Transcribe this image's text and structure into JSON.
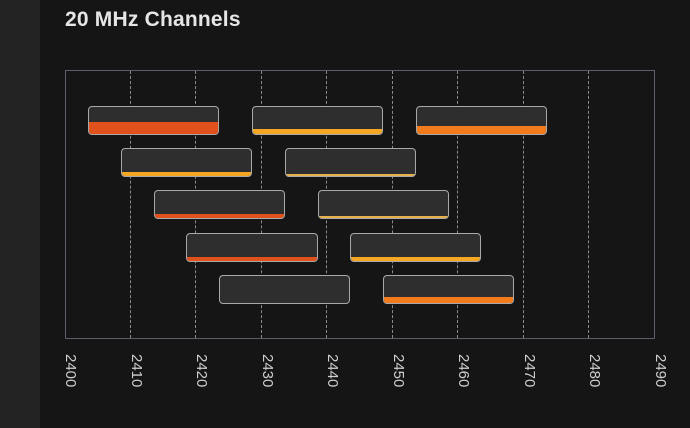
{
  "header": {
    "title": "20 MHz Channels"
  },
  "chart_data": {
    "type": "bar",
    "subtype": "frequency-channel-ranges",
    "x_ticks": [
      "2400",
      "2410",
      "2420",
      "2430",
      "2440",
      "2450",
      "2460",
      "2470",
      "2480",
      "2490"
    ],
    "xlim": [
      2400,
      2490
    ],
    "grid": true,
    "channels": [
      {
        "start": 2402,
        "end": 2422,
        "row": 0,
        "level": 0.45,
        "color": "#e0511c"
      },
      {
        "start": 2427,
        "end": 2447,
        "row": 0,
        "level": 0.2,
        "color": "#f5a623"
      },
      {
        "start": 2452,
        "end": 2472,
        "row": 0,
        "level": 0.3,
        "color": "#f27b1c"
      },
      {
        "start": 2407,
        "end": 2427,
        "row": 1,
        "level": 0.18,
        "color": "#f5a623"
      },
      {
        "start": 2432,
        "end": 2452,
        "row": 1,
        "level": 0.08,
        "color": "#e8b04a"
      },
      {
        "start": 2412,
        "end": 2432,
        "row": 2,
        "level": 0.18,
        "color": "#e0511c"
      },
      {
        "start": 2437,
        "end": 2457,
        "row": 2,
        "level": 0.06,
        "color": "#e8b04a"
      },
      {
        "start": 2417,
        "end": 2437,
        "row": 3,
        "level": 0.12,
        "color": "#e0511c"
      },
      {
        "start": 2442,
        "end": 2462,
        "row": 3,
        "level": 0.15,
        "color": "#f5a623"
      },
      {
        "start": 2422,
        "end": 2442,
        "row": 4,
        "level": 0.0,
        "color": "#f5a623"
      },
      {
        "start": 2447,
        "end": 2467,
        "row": 4,
        "level": 0.22,
        "color": "#f27b1c"
      }
    ]
  }
}
